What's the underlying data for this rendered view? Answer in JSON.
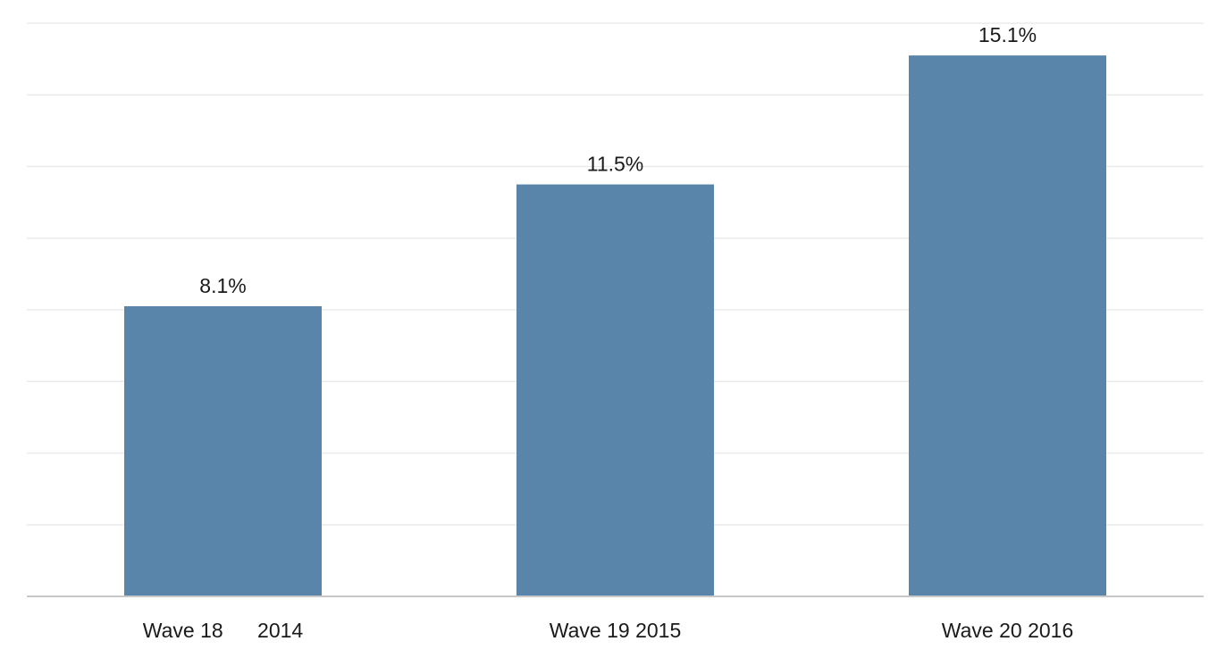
{
  "chart_data": {
    "type": "bar",
    "categories": [
      "Wave 18      2014",
      "Wave 19 2015",
      "Wave 20 2016"
    ],
    "values": [
      8.1,
      11.5,
      15.1
    ],
    "data_labels": [
      "8.1%",
      "11.5%",
      "15.1%"
    ],
    "value_unit": "%",
    "title": "",
    "xlabel": "",
    "ylabel": "",
    "ylim": [
      0,
      16
    ],
    "grid": true,
    "grid_step": 2,
    "legend": "none",
    "bar_color": "#5a85ab"
  }
}
